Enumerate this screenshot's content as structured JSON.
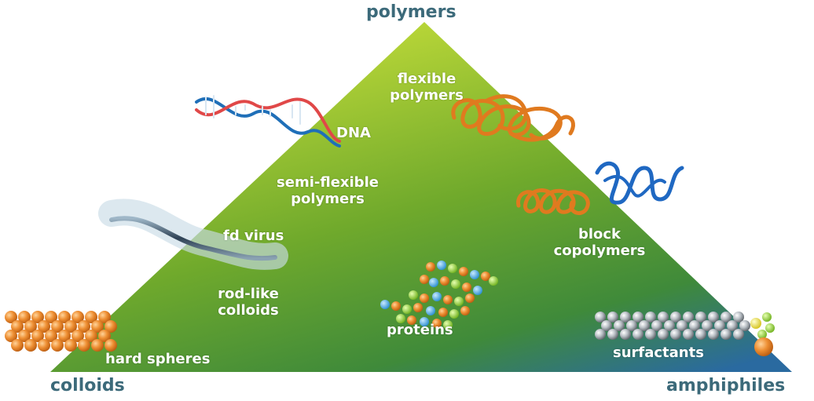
{
  "corners": {
    "top": "polymers",
    "bottom_left": "colloids",
    "bottom_right": "amphiphiles"
  },
  "labels": {
    "flexible_polymers": [
      "flexible",
      "polymers"
    ],
    "dna": "DNA",
    "semi_flexible_polymers": [
      "semi-flexible",
      "polymers"
    ],
    "fd_virus": "fd virus",
    "rod_like_colloids": [
      "rod-like",
      "colloids"
    ],
    "hard_spheres": "hard spheres",
    "proteins": "proteins",
    "block_copolymers": [
      "block",
      "copolymers"
    ],
    "surfactants": "surfactants"
  },
  "icons": [
    "dna-helix-icon",
    "fd-virus-rod-icon",
    "hard-spheres-icon",
    "protein-beads-icon",
    "flexible-polymer-coil-icon",
    "block-copolymer-coil-icon",
    "surfactant-micelle-icon"
  ],
  "colors": {
    "triangle_top": "#b6d334",
    "triangle_mid": "#5a9a2c",
    "triangle_bottom_right": "#2b6fa8",
    "corner_text": "#3c6a7a",
    "polymer_orange": "#e07a1f",
    "copolymer_blue": "#1f68c2"
  }
}
